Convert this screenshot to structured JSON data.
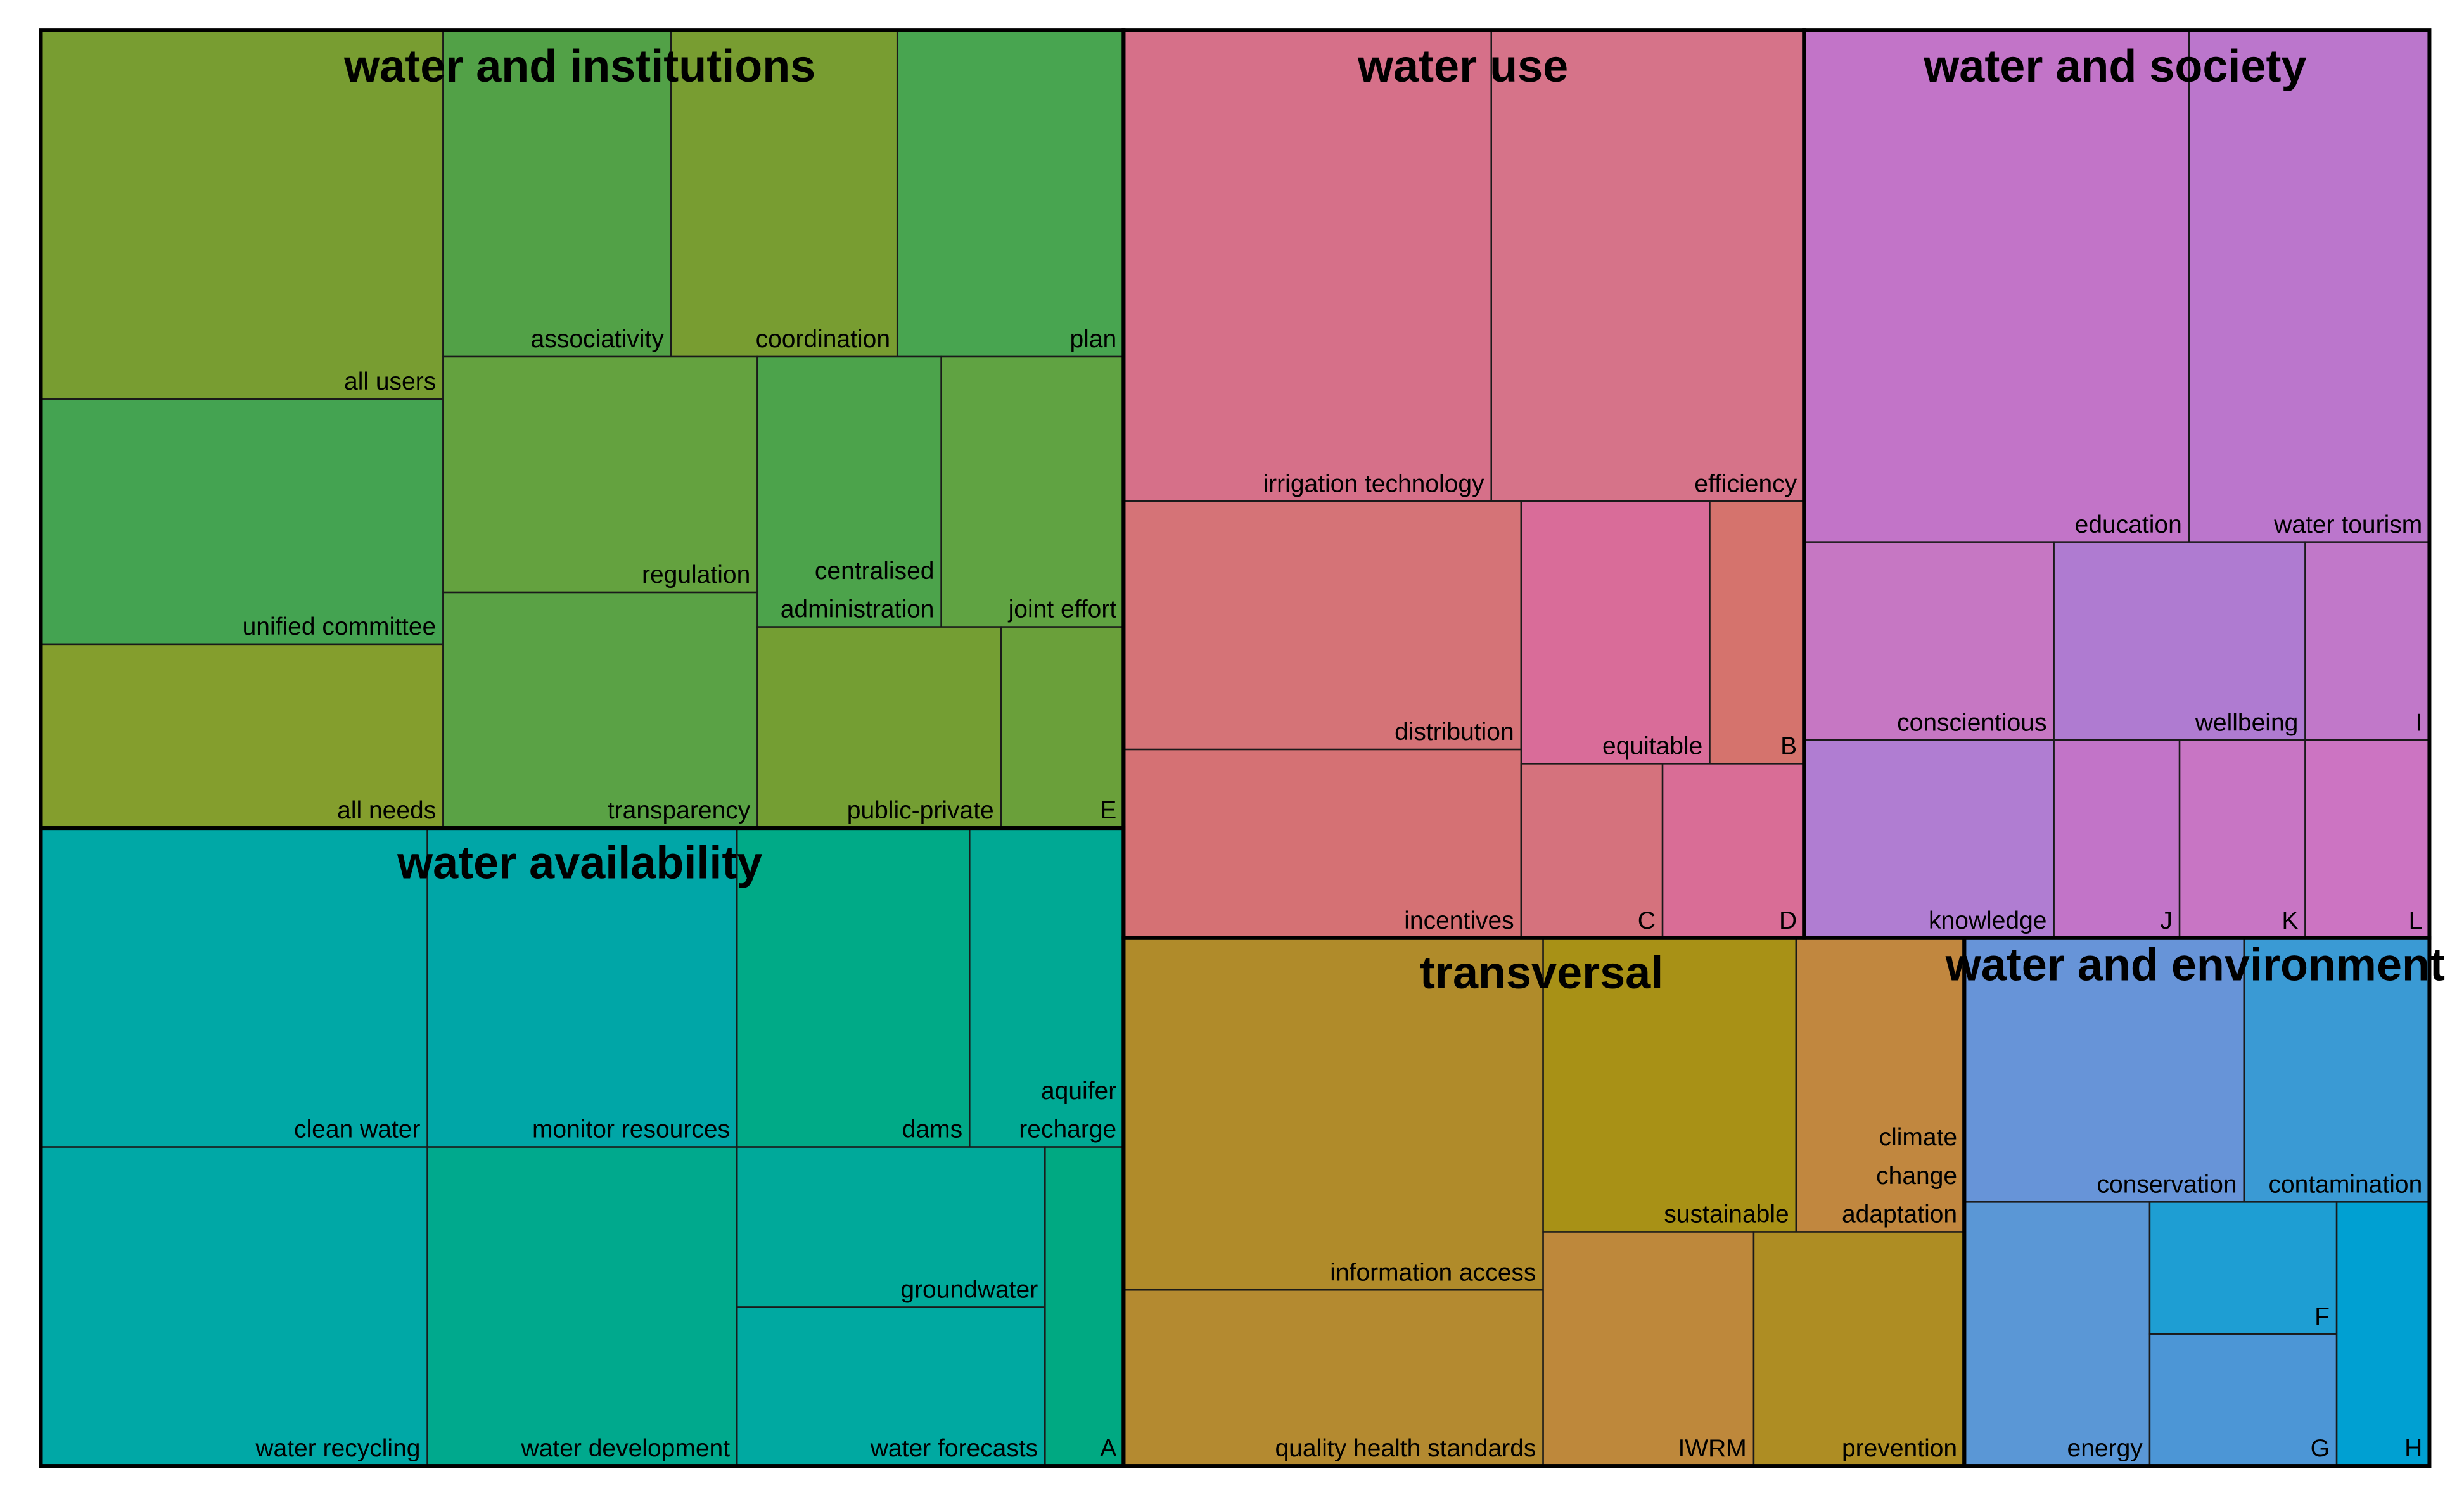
{
  "chart_data": {
    "type": "treemap",
    "title": "",
    "groups": [
      {
        "name": "water and institutions",
        "items": [
          {
            "label": "all users",
            "color": "#789d31"
          },
          {
            "label": "unified committee",
            "color": "#44a351"
          },
          {
            "label": "all needs",
            "color": "#849e2d"
          },
          {
            "label": "associativity",
            "color": "#52a147"
          },
          {
            "label": "coordination",
            "color": "#789d31"
          },
          {
            "label": "plan",
            "color": "#48a550"
          },
          {
            "label": "regulation",
            "color": "#64a23f"
          },
          {
            "label": "transparency",
            "color": "#5aa245"
          },
          {
            "label": "centralised administration",
            "color": "#4ca34b"
          },
          {
            "label": "joint effort",
            "color": "#60a342"
          },
          {
            "label": "public-private",
            "color": "#749e33"
          },
          {
            "label": "E",
            "color": "#6aa03a"
          }
        ]
      },
      {
        "name": "water use",
        "items": [
          {
            "label": "irrigation technology",
            "color": "#d67089"
          },
          {
            "label": "efficiency",
            "color": "#d67389"
          },
          {
            "label": "distribution",
            "color": "#d57377"
          },
          {
            "label": "equitable",
            "color": "#d96c99"
          },
          {
            "label": "B",
            "color": "#d5736d"
          },
          {
            "label": "incentives",
            "color": "#d57174"
          },
          {
            "label": "C",
            "color": "#d5727d"
          },
          {
            "label": "D",
            "color": "#d96d96"
          }
        ]
      },
      {
        "name": "water and society",
        "items": [
          {
            "label": "education",
            "color": "#c274c8"
          },
          {
            "label": "water tourism",
            "color": "#bb76cc"
          },
          {
            "label": "conscientious",
            "color": "#c677c3"
          },
          {
            "label": "wellbeing",
            "color": "#af7bd1"
          },
          {
            "label": "I",
            "color": "#c178c9"
          },
          {
            "label": "knowledge",
            "color": "#b07dd2"
          },
          {
            "label": "J",
            "color": "#c274c8"
          },
          {
            "label": "K",
            "color": "#c875c4"
          },
          {
            "label": "L",
            "color": "#cc74c2"
          }
        ]
      },
      {
        "name": "water availability",
        "items": [
          {
            "label": "clean water",
            "color": "#00a8a6"
          },
          {
            "label": "monitor resources",
            "color": "#00a6a7"
          },
          {
            "label": "dams",
            "color": "#00aa87"
          },
          {
            "label": "aquifer recharge",
            "color": "#00a994"
          },
          {
            "label": "water recycling",
            "color": "#00a8a6"
          },
          {
            "label": "water development",
            "color": "#00a98d"
          },
          {
            "label": "groundwater",
            "color": "#00a99a"
          },
          {
            "label": "water forecasts",
            "color": "#00a9a1"
          },
          {
            "label": "A",
            "color": "#00a982"
          }
        ]
      },
      {
        "name": "transversal",
        "items": [
          {
            "label": "information access",
            "color": "#b08b2a"
          },
          {
            "label": "sustainable",
            "color": "#a89116"
          },
          {
            "label": "climate change adaptation",
            "color": "#c1873f"
          },
          {
            "label": "quality health standards",
            "color": "#b48a30"
          },
          {
            "label": "IWRM",
            "color": "#be883b"
          },
          {
            "label": "prevention",
            "color": "#ae8d23"
          }
        ]
      },
      {
        "name": "water and environment",
        "items": [
          {
            "label": "conservation",
            "color": "#6794d8"
          },
          {
            "label": "contamination",
            "color": "#3a9ad4"
          },
          {
            "label": "energy",
            "color": "#5a97d6"
          },
          {
            "label": "F",
            "color": "#1e9ed3"
          },
          {
            "label": "G",
            "color": "#4c96d6"
          },
          {
            "label": "H",
            "color": "#00a0d2"
          }
        ]
      }
    ]
  }
}
